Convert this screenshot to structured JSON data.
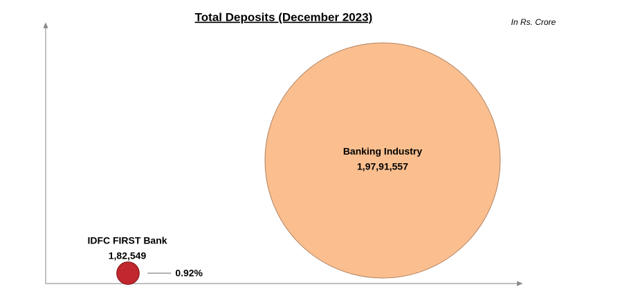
{
  "chart_data": {
    "type": "bubble",
    "title": "Total Deposits (December 2023)",
    "unit_note": "In Rs. Crore",
    "categories": [
      "IDFC FIRST Bank",
      "Banking Industry"
    ],
    "values": [
      182549,
      19791557
    ],
    "value_labels": [
      "1,82,549",
      "1,97,91,557"
    ],
    "colors": [
      "#c0282d",
      "#fbbf8f"
    ],
    "annotation": "0.92%"
  }
}
